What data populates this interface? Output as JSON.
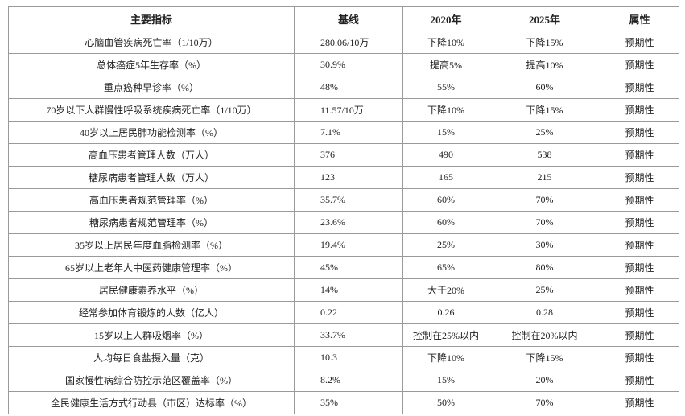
{
  "table": {
    "header": [
      "主要指标",
      "基线",
      "2020年",
      "2025年",
      "属性"
    ],
    "rows": [
      [
        "心脑血管疾病死亡率（1/10万）",
        "280.06/10万",
        "下降10%",
        "下降15%",
        "预期性"
      ],
      [
        "总体癌症5年生存率（%）",
        "30.9%",
        "提高5%",
        "提高10%",
        "预期性"
      ],
      [
        "重点癌种早诊率（%）",
        "48%",
        "55%",
        "60%",
        "预期性"
      ],
      [
        "70岁以下人群慢性呼吸系统疾病死亡率（1/10万）",
        "11.57/10万",
        "下降10%",
        "下降15%",
        "预期性"
      ],
      [
        "40岁以上居民肺功能检测率（%）",
        "7.1%",
        "15%",
        "25%",
        "预期性"
      ],
      [
        "高血压患者管理人数（万人）",
        "376",
        "490",
        "538",
        "预期性"
      ],
      [
        "糖尿病患者管理人数（万人）",
        "123",
        "165",
        "215",
        "预期性"
      ],
      [
        "高血压患者规范管理率（%）",
        "35.7%",
        "60%",
        "70%",
        "预期性"
      ],
      [
        "糖尿病患者规范管理率（%）",
        "23.6%",
        "60%",
        "70%",
        "预期性"
      ],
      [
        "35岁以上居民年度血脂检测率（%）",
        "19.4%",
        "25%",
        "30%",
        "预期性"
      ],
      [
        "65岁以上老年人中医药健康管理率（%）",
        "45%",
        "65%",
        "80%",
        "预期性"
      ],
      [
        "居民健康素养水平（%）",
        "14%",
        "大于20%",
        "25%",
        "预期性"
      ],
      [
        "经常参加体育锻炼的人数（亿人）",
        "0.22",
        "0.26",
        "0.28",
        "预期性"
      ],
      [
        "15岁以上人群吸烟率（%）",
        "33.7%",
        "控制在25%以内",
        "控制在20%以内",
        "预期性"
      ],
      [
        "人均每日食盐摄入量（克）",
        "10.3",
        "下降10%",
        "下降15%",
        "预期性"
      ],
      [
        "国家慢性病综合防控示范区覆盖率（%）",
        "8.2%",
        "15%",
        "20%",
        "预期性"
      ],
      [
        "全民健康生活方式行动县（市区）达标率（%）",
        "35%",
        "50%",
        "70%",
        "预期性"
      ]
    ]
  }
}
